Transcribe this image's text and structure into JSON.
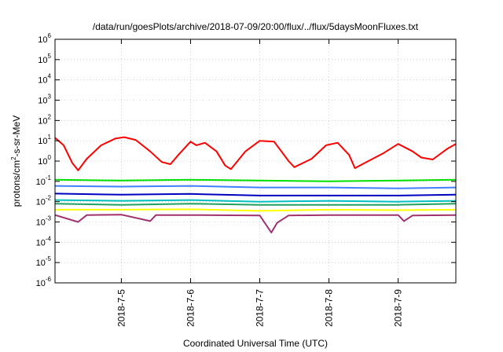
{
  "chart_data": {
    "type": "line",
    "title": "/data/run/goesPlots/archive/2018-07-09/20:00/flux/../flux/5daysMoonFluxes.txt",
    "xlabel": "Coordinated Universal Time (UTC)",
    "ylabel": "protons/cm2-s-sr-MeV",
    "ylabel_parts": [
      "protons/cm",
      "2",
      "-s-sr-MeV"
    ],
    "y_scale": "log",
    "ylim": [
      1e-06,
      1000000.0
    ],
    "y_ticks": [
      {
        "exp": "-6",
        "value": 1e-06
      },
      {
        "exp": "-5",
        "value": 1e-05
      },
      {
        "exp": "-4",
        "value": 0.0001
      },
      {
        "exp": "-3",
        "value": 0.001
      },
      {
        "exp": "-2",
        "value": 0.01
      },
      {
        "exp": "-1",
        "value": 0.1
      },
      {
        "exp": "0",
        "value": 1
      },
      {
        "exp": "1",
        "value": 10
      },
      {
        "exp": "2",
        "value": 100
      },
      {
        "exp": "3",
        "value": 1000
      },
      {
        "exp": "4",
        "value": 10000
      },
      {
        "exp": "5",
        "value": 100000
      },
      {
        "exp": "6",
        "value": 1000000
      }
    ],
    "y_tick_base": "10",
    "xlim": [
      "2018-07-04 01:00",
      "2018-07-09 20:00"
    ],
    "x_ticks": [
      {
        "label": "2018-7-5",
        "date": "2018-07-05"
      },
      {
        "label": "2018-7-6",
        "date": "2018-07-06"
      },
      {
        "label": "2018-7-7",
        "date": "2018-07-07"
      },
      {
        "label": "2018-7-8",
        "date": "2018-07-08"
      },
      {
        "label": "2018-7-9",
        "date": "2018-07-09"
      }
    ],
    "grid": true,
    "legend": false,
    "series": [
      {
        "color": "#ff0000",
        "points": [
          [
            "2018-07-04 01:00",
            14
          ],
          [
            "2018-07-04 04:00",
            6
          ],
          [
            "2018-07-04 07:00",
            0.8
          ],
          [
            "2018-07-04 09:00",
            0.35
          ],
          [
            "2018-07-04 12:00",
            1.3
          ],
          [
            "2018-07-04 17:00",
            6
          ],
          [
            "2018-07-04 22:00",
            13
          ],
          [
            "2018-07-05 01:00",
            15
          ],
          [
            "2018-07-05 05:00",
            11
          ],
          [
            "2018-07-05 10:00",
            3
          ],
          [
            "2018-07-05 14:00",
            0.9
          ],
          [
            "2018-07-05 17:00",
            0.7
          ],
          [
            "2018-07-05 20:00",
            2.2
          ],
          [
            "2018-07-06 00:00",
            9
          ],
          [
            "2018-07-06 02:00",
            6
          ],
          [
            "2018-07-06 05:00",
            8
          ],
          [
            "2018-07-06 09:00",
            3
          ],
          [
            "2018-07-06 12:00",
            0.6
          ],
          [
            "2018-07-06 14:00",
            0.4
          ],
          [
            "2018-07-06 19:00",
            3
          ],
          [
            "2018-07-07 00:00",
            10
          ],
          [
            "2018-07-07 05:00",
            9
          ],
          [
            "2018-07-07 10:00",
            1
          ],
          [
            "2018-07-07 12:00",
            0.5
          ],
          [
            "2018-07-07 18:00",
            1.3
          ],
          [
            "2018-07-07 23:00",
            6
          ],
          [
            "2018-07-08 03:00",
            8
          ],
          [
            "2018-07-08 07:00",
            2
          ],
          [
            "2018-07-08 09:00",
            0.45
          ],
          [
            "2018-07-08 13:00",
            0.9
          ],
          [
            "2018-07-08 19:00",
            2.5
          ],
          [
            "2018-07-09 00:00",
            7
          ],
          [
            "2018-07-09 05:00",
            3
          ],
          [
            "2018-07-09 08:00",
            1.5
          ],
          [
            "2018-07-09 12:00",
            1.2
          ],
          [
            "2018-07-09 17:00",
            4
          ],
          [
            "2018-07-09 20:00",
            7
          ]
        ]
      },
      {
        "color": "#00e000",
        "points": [
          [
            "2018-07-04 01:00",
            0.12
          ],
          [
            "2018-07-05 00:00",
            0.11
          ],
          [
            "2018-07-06 00:00",
            0.12
          ],
          [
            "2018-07-07 00:00",
            0.11
          ],
          [
            "2018-07-08 00:00",
            0.1
          ],
          [
            "2018-07-09 00:00",
            0.11
          ],
          [
            "2018-07-09 20:00",
            0.12
          ]
        ]
      },
      {
        "color": "#4080ff",
        "points": [
          [
            "2018-07-04 01:00",
            0.06
          ],
          [
            "2018-07-05 00:00",
            0.055
          ],
          [
            "2018-07-06 00:00",
            0.06
          ],
          [
            "2018-07-07 00:00",
            0.05
          ],
          [
            "2018-07-08 00:00",
            0.05
          ],
          [
            "2018-07-09 00:00",
            0.045
          ],
          [
            "2018-07-09 20:00",
            0.05
          ]
        ]
      },
      {
        "color": "#0000c0",
        "points": [
          [
            "2018-07-04 01:00",
            0.025
          ],
          [
            "2018-07-05 00:00",
            0.022
          ],
          [
            "2018-07-06 00:00",
            0.024
          ],
          [
            "2018-07-07 00:00",
            0.02
          ],
          [
            "2018-07-08 00:00",
            0.02
          ],
          [
            "2018-07-09 00:00",
            0.02
          ],
          [
            "2018-07-09 20:00",
            0.022
          ]
        ]
      },
      {
        "color": "#00c0c0",
        "points": [
          [
            "2018-07-04 01:00",
            0.012
          ],
          [
            "2018-07-05 00:00",
            0.011
          ],
          [
            "2018-07-06 00:00",
            0.012
          ],
          [
            "2018-07-07 00:00",
            0.01
          ],
          [
            "2018-07-08 00:00",
            0.011
          ],
          [
            "2018-07-09 00:00",
            0.01
          ],
          [
            "2018-07-09 20:00",
            0.011
          ]
        ]
      },
      {
        "color": "#20a060",
        "points": [
          [
            "2018-07-04 01:00",
            0.008
          ],
          [
            "2018-07-05 00:00",
            0.007
          ],
          [
            "2018-07-06 00:00",
            0.008
          ],
          [
            "2018-07-07 00:00",
            0.007
          ],
          [
            "2018-07-08 00:00",
            0.007
          ],
          [
            "2018-07-09 00:00",
            0.007
          ],
          [
            "2018-07-09 20:00",
            0.008
          ]
        ]
      },
      {
        "color": "#ffff00",
        "points": [
          [
            "2018-07-04 01:00",
            0.004
          ],
          [
            "2018-07-05 00:00",
            0.004
          ],
          [
            "2018-07-06 00:00",
            0.0042
          ],
          [
            "2018-07-07 00:00",
            0.0035
          ],
          [
            "2018-07-08 00:00",
            0.004
          ],
          [
            "2018-07-09 00:00",
            0.0038
          ],
          [
            "2018-07-09 20:00",
            0.004
          ]
        ]
      },
      {
        "color": "#a03070",
        "points": [
          [
            "2018-07-04 01:00",
            0.0022
          ],
          [
            "2018-07-04 09:00",
            0.001
          ],
          [
            "2018-07-04 12:00",
            0.0022
          ],
          [
            "2018-07-05 00:00",
            0.0023
          ],
          [
            "2018-07-05 10:00",
            0.0011
          ],
          [
            "2018-07-05 12:00",
            0.0022
          ],
          [
            "2018-07-06 00:00",
            0.0022
          ],
          [
            "2018-07-07 00:00",
            0.0021
          ],
          [
            "2018-07-07 04:00",
            0.0003
          ],
          [
            "2018-07-07 06:00",
            0.0009
          ],
          [
            "2018-07-07 10:00",
            0.0021
          ],
          [
            "2018-07-08 00:00",
            0.0022
          ],
          [
            "2018-07-09 00:00",
            0.0022
          ],
          [
            "2018-07-09 02:00",
            0.0011
          ],
          [
            "2018-07-09 05:00",
            0.0021
          ],
          [
            "2018-07-09 20:00",
            0.0022
          ]
        ]
      }
    ]
  }
}
